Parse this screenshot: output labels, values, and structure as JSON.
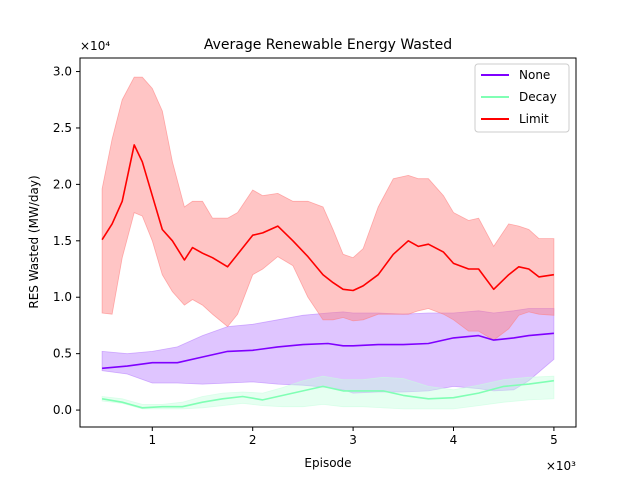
{
  "chart_data": {
    "type": "line",
    "title": "Average Renewable Energy Wasted",
    "xlabel": "Episode",
    "ylabel": "RES Wasted (MW/day)",
    "x_multiplier_label": "×10³",
    "y_multiplier_label": "×10⁴",
    "xlim": [
      0.28,
      5.22
    ],
    "ylim": [
      -0.15,
      3.12
    ],
    "x_ticks": [
      1,
      2,
      3,
      4,
      5
    ],
    "y_ticks": [
      0.0,
      0.5,
      1.0,
      1.5,
      2.0,
      2.5,
      3.0
    ],
    "x_tick_labels": [
      "1",
      "2",
      "3",
      "4",
      "5"
    ],
    "y_tick_labels": [
      "0.0",
      "0.5",
      "1.0",
      "1.5",
      "2.0",
      "2.5",
      "3.0"
    ],
    "grid": false,
    "legend_position": "top-right",
    "series": [
      {
        "name": "None",
        "color": "#7f00ff",
        "band_color": "#b77fff",
        "x": [
          0.5,
          0.75,
          1.0,
          1.25,
          1.5,
          1.75,
          2.0,
          2.25,
          2.5,
          2.75,
          2.9,
          3.0,
          3.25,
          3.5,
          3.75,
          4.0,
          4.25,
          4.4,
          4.6,
          4.75,
          5.0
        ],
        "values": [
          0.37,
          0.39,
          0.42,
          0.42,
          0.47,
          0.52,
          0.53,
          0.56,
          0.58,
          0.59,
          0.57,
          0.57,
          0.58,
          0.58,
          0.59,
          0.64,
          0.66,
          0.62,
          0.64,
          0.66,
          0.68
        ],
        "lower": [
          0.35,
          0.32,
          0.24,
          0.24,
          0.23,
          0.24,
          0.25,
          0.23,
          0.22,
          0.2,
          0.18,
          0.15,
          0.16,
          0.16,
          0.17,
          0.21,
          0.19,
          0.17,
          0.18,
          0.26,
          0.45
        ],
        "upper": [
          0.52,
          0.5,
          0.52,
          0.56,
          0.66,
          0.74,
          0.76,
          0.8,
          0.84,
          0.86,
          0.87,
          0.86,
          0.86,
          0.85,
          0.86,
          0.86,
          0.88,
          0.86,
          0.88,
          0.9,
          0.9
        ]
      },
      {
        "name": "Decay",
        "color": "#80ffb4",
        "band_color": "#c8ffe0",
        "x": [
          0.5,
          0.7,
          0.9,
          1.1,
          1.3,
          1.5,
          1.7,
          1.9,
          2.1,
          2.3,
          2.5,
          2.7,
          2.9,
          3.1,
          3.3,
          3.5,
          3.75,
          4.0,
          4.25,
          4.5,
          4.75,
          5.0
        ],
        "values": [
          0.1,
          0.07,
          0.02,
          0.03,
          0.03,
          0.07,
          0.1,
          0.12,
          0.09,
          0.13,
          0.17,
          0.21,
          0.17,
          0.17,
          0.17,
          0.13,
          0.1,
          0.11,
          0.15,
          0.21,
          0.23,
          0.26
        ],
        "lower": [
          0.08,
          0.06,
          0.01,
          0.01,
          0.01,
          0.02,
          0.04,
          0.06,
          0.04,
          0.03,
          0.03,
          0.05,
          0.03,
          0.03,
          0.02,
          0.01,
          0.01,
          0.01,
          0.04,
          0.07,
          0.09,
          0.1
        ],
        "upper": [
          0.12,
          0.1,
          0.05,
          0.05,
          0.07,
          0.12,
          0.15,
          0.16,
          0.15,
          0.2,
          0.26,
          0.3,
          0.27,
          0.27,
          0.29,
          0.28,
          0.21,
          0.18,
          0.22,
          0.27,
          0.29,
          0.3
        ]
      },
      {
        "name": "Limit",
        "color": "#ff0000",
        "band_color": "#ff7f7f",
        "x": [
          0.5,
          0.6,
          0.7,
          0.82,
          0.9,
          1.0,
          1.1,
          1.2,
          1.32,
          1.4,
          1.5,
          1.6,
          1.75,
          1.85,
          2.0,
          2.1,
          2.25,
          2.4,
          2.55,
          2.7,
          2.8,
          2.9,
          3.0,
          3.1,
          3.25,
          3.4,
          3.55,
          3.65,
          3.75,
          3.9,
          4.0,
          4.15,
          4.25,
          4.4,
          4.55,
          4.65,
          4.75,
          4.85,
          5.0
        ],
        "values": [
          1.51,
          1.65,
          1.85,
          2.35,
          2.2,
          1.9,
          1.6,
          1.5,
          1.33,
          1.44,
          1.39,
          1.35,
          1.27,
          1.38,
          1.55,
          1.57,
          1.63,
          1.5,
          1.36,
          1.2,
          1.13,
          1.07,
          1.06,
          1.1,
          1.2,
          1.38,
          1.5,
          1.45,
          1.47,
          1.4,
          1.3,
          1.25,
          1.25,
          1.07,
          1.2,
          1.27,
          1.25,
          1.18,
          1.2
        ],
        "lower": [
          0.86,
          0.85,
          1.35,
          1.75,
          1.72,
          1.5,
          1.2,
          1.05,
          0.93,
          0.98,
          0.93,
          0.85,
          0.74,
          0.85,
          1.2,
          1.25,
          1.36,
          1.28,
          1.0,
          0.8,
          0.8,
          0.82,
          0.79,
          0.8,
          0.85,
          0.85,
          0.85,
          0.88,
          0.9,
          0.85,
          0.8,
          0.7,
          0.7,
          0.62,
          0.72,
          0.84,
          0.87,
          0.85,
          0.84
        ],
        "upper": [
          1.96,
          2.4,
          2.75,
          2.95,
          2.95,
          2.85,
          2.65,
          2.2,
          1.8,
          1.85,
          1.85,
          1.7,
          1.7,
          1.75,
          1.95,
          1.9,
          1.92,
          1.85,
          1.85,
          1.8,
          1.6,
          1.38,
          1.35,
          1.43,
          1.8,
          2.05,
          2.08,
          2.05,
          2.05,
          1.9,
          1.75,
          1.68,
          1.7,
          1.45,
          1.65,
          1.63,
          1.6,
          1.52,
          1.52
        ]
      }
    ]
  }
}
